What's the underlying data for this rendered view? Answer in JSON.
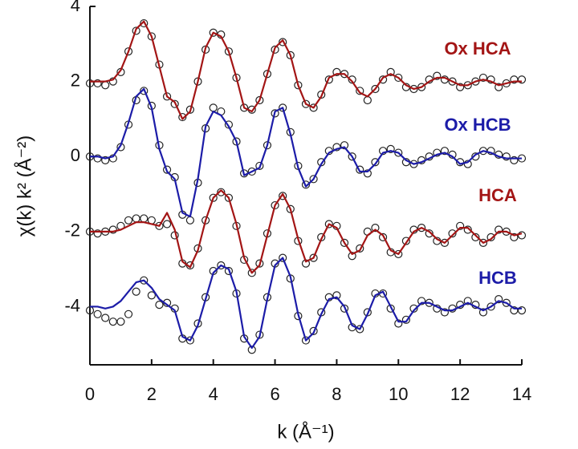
{
  "chart_data": {
    "type": "line",
    "x_label": "k (Å⁻¹)",
    "y_label": "χ(k) k² (Å⁻²)",
    "xlim": [
      0,
      14
    ],
    "ylim": [
      -5.55,
      4
    ],
    "xticks": [
      0,
      2,
      4,
      6,
      8,
      10,
      12,
      14
    ],
    "yticks": [
      4,
      2,
      0,
      -2,
      -4
    ],
    "x": [
      0,
      0.25,
      0.5,
      0.75,
      1,
      1.25,
      1.5,
      1.75,
      2,
      2.25,
      2.5,
      2.75,
      3,
      3.25,
      3.5,
      3.75,
      4,
      4.25,
      4.5,
      4.75,
      5,
      5.25,
      5.5,
      5.75,
      6,
      6.25,
      6.5,
      6.75,
      7,
      7.25,
      7.5,
      7.75,
      8,
      8.25,
      8.5,
      8.75,
      9,
      9.25,
      9.5,
      9.75,
      10,
      10.25,
      10.5,
      10.75,
      11,
      11.25,
      11.5,
      11.75,
      12,
      12.25,
      12.5,
      12.75,
      13,
      13.25,
      13.5,
      13.75,
      14
    ],
    "series": [
      {
        "name": "Ox HCA",
        "color": "#a31515",
        "values": [
          2.0,
          2.0,
          2.0,
          2.05,
          2.3,
          2.8,
          3.4,
          3.6,
          3.2,
          2.4,
          1.6,
          1.45,
          1.0,
          1.2,
          2.0,
          2.9,
          3.3,
          3.2,
          2.8,
          2.1,
          1.3,
          1.2,
          1.5,
          2.2,
          2.9,
          3.1,
          2.7,
          1.9,
          1.4,
          1.3,
          1.6,
          2.1,
          2.2,
          2.2,
          2.0,
          1.7,
          1.6,
          1.8,
          2.1,
          2.2,
          2.1,
          1.9,
          1.8,
          1.85,
          2.0,
          2.1,
          2.1,
          2.0,
          1.9,
          1.9,
          2.0,
          2.05,
          2.0,
          1.9,
          1.95,
          2.0,
          2.0
        ],
        "points": [
          1.95,
          1.95,
          1.9,
          2.0,
          2.25,
          2.8,
          3.35,
          3.55,
          3.2,
          2.45,
          1.6,
          1.4,
          1.05,
          1.25,
          2.0,
          2.85,
          3.3,
          3.25,
          2.8,
          2.1,
          1.3,
          1.25,
          1.5,
          2.2,
          2.85,
          3.05,
          2.7,
          1.9,
          1.4,
          1.3,
          1.65,
          2.05,
          2.25,
          2.2,
          2.05,
          1.75,
          1.5,
          1.8,
          2.05,
          2.25,
          2.1,
          1.85,
          1.8,
          1.85,
          2.05,
          2.15,
          2.05,
          2.0,
          1.85,
          1.9,
          2.0,
          2.1,
          2.05,
          1.85,
          1.95,
          2.05,
          2.05
        ]
      },
      {
        "name": "Ox HCB",
        "color": "#1c1ca8",
        "values": [
          0.0,
          0.0,
          -0.05,
          0.0,
          0.3,
          0.9,
          1.6,
          1.8,
          1.3,
          0.2,
          -0.4,
          -0.6,
          -1.5,
          -1.6,
          -0.6,
          0.8,
          1.2,
          1.1,
          0.8,
          0.4,
          -0.5,
          -0.4,
          -0.3,
          0.3,
          1.2,
          1.3,
          0.6,
          -0.3,
          -0.8,
          -0.6,
          -0.2,
          0.1,
          0.2,
          0.25,
          0.0,
          -0.4,
          -0.4,
          -0.2,
          0.1,
          0.15,
          0.1,
          -0.1,
          -0.2,
          -0.15,
          -0.05,
          0.05,
          0.1,
          0.0,
          -0.2,
          -0.15,
          0.05,
          0.15,
          0.1,
          0.0,
          -0.05,
          -0.05,
          -0.05
        ],
        "points": [
          0.0,
          -0.05,
          -0.1,
          -0.05,
          0.25,
          0.85,
          1.5,
          1.75,
          1.35,
          0.3,
          -0.35,
          -0.55,
          -1.55,
          -1.7,
          -0.7,
          0.75,
          1.3,
          1.2,
          0.85,
          0.4,
          -0.45,
          -0.4,
          -0.25,
          0.3,
          1.15,
          1.3,
          0.65,
          -0.25,
          -0.75,
          -0.6,
          -0.15,
          0.15,
          0.25,
          0.3,
          0.0,
          -0.35,
          -0.45,
          -0.15,
          0.15,
          0.2,
          0.1,
          -0.15,
          -0.2,
          -0.1,
          0.0,
          0.1,
          0.15,
          0.05,
          -0.15,
          -0.2,
          0.0,
          0.15,
          0.15,
          0.05,
          0.0,
          -0.1,
          -0.05
        ]
      },
      {
        "name": "HCA",
        "color": "#a31515",
        "values": [
          -2.0,
          -2.0,
          -2.0,
          -2.0,
          -1.95,
          -1.85,
          -1.75,
          -1.75,
          -1.8,
          -1.85,
          -1.5,
          -1.95,
          -2.8,
          -2.95,
          -2.5,
          -1.7,
          -1.1,
          -0.9,
          -1.1,
          -1.8,
          -2.7,
          -3.1,
          -2.9,
          -2.1,
          -1.3,
          -1.0,
          -1.4,
          -2.2,
          -2.8,
          -2.7,
          -2.2,
          -1.8,
          -1.9,
          -2.3,
          -2.6,
          -2.5,
          -2.1,
          -1.95,
          -2.1,
          -2.5,
          -2.6,
          -2.3,
          -2.0,
          -1.9,
          -2.0,
          -2.2,
          -2.3,
          -2.1,
          -1.9,
          -1.9,
          -2.1,
          -2.3,
          -2.2,
          -2.0,
          -2.0,
          -2.1,
          -2.05
        ],
        "points": [
          -2.0,
          -2.05,
          -2.0,
          -1.95,
          -1.85,
          -1.7,
          -1.65,
          -1.65,
          -1.7,
          -1.85,
          -1.8,
          -2.1,
          -2.85,
          -2.9,
          -2.45,
          -1.7,
          -1.1,
          -0.95,
          -1.1,
          -1.85,
          -2.75,
          -3.1,
          -2.85,
          -2.05,
          -1.3,
          -1.05,
          -1.4,
          -2.25,
          -2.85,
          -2.7,
          -2.15,
          -1.8,
          -1.85,
          -2.3,
          -2.65,
          -2.45,
          -2.0,
          -1.9,
          -2.15,
          -2.55,
          -2.6,
          -2.25,
          -1.95,
          -1.9,
          -2.05,
          -2.25,
          -2.3,
          -2.05,
          -1.85,
          -1.95,
          -2.15,
          -2.3,
          -2.15,
          -1.95,
          -2.0,
          -2.15,
          -2.1
        ]
      },
      {
        "name": "HCB",
        "color": "#1c1ca8",
        "values": [
          -4.0,
          -4.0,
          -4.05,
          -4.0,
          -3.85,
          -3.6,
          -3.35,
          -3.3,
          -3.5,
          -3.8,
          -3.95,
          -4.1,
          -4.8,
          -4.9,
          -4.5,
          -3.8,
          -3.1,
          -2.9,
          -3.0,
          -3.6,
          -4.8,
          -5.1,
          -4.8,
          -3.8,
          -2.9,
          -2.7,
          -3.2,
          -4.2,
          -4.9,
          -4.7,
          -4.2,
          -3.8,
          -3.75,
          -4.0,
          -4.5,
          -4.6,
          -4.2,
          -3.7,
          -3.6,
          -4.0,
          -4.4,
          -4.4,
          -4.1,
          -3.9,
          -3.9,
          -4.0,
          -4.1,
          -4.1,
          -4.0,
          -3.9,
          -4.0,
          -4.1,
          -4.0,
          -3.85,
          -3.9,
          -4.05,
          -4.05
        ],
        "points": [
          -4.1,
          -4.2,
          -4.3,
          -4.4,
          -4.4,
          -4.2,
          -3.6,
          -3.3,
          -3.7,
          -3.95,
          -3.9,
          -4.05,
          -4.85,
          -4.9,
          -4.45,
          -3.75,
          -3.05,
          -2.9,
          -3.05,
          -3.65,
          -4.85,
          -5.15,
          -4.75,
          -3.75,
          -2.85,
          -2.7,
          -3.25,
          -4.25,
          -4.9,
          -4.65,
          -4.15,
          -3.75,
          -3.7,
          -4.05,
          -4.55,
          -4.6,
          -4.15,
          -3.65,
          -3.65,
          -4.05,
          -4.45,
          -4.35,
          -4.05,
          -3.85,
          -3.9,
          -4.05,
          -4.15,
          -4.05,
          -3.95,
          -3.85,
          -3.95,
          -4.15,
          -4.0,
          -3.8,
          -3.9,
          -4.1,
          -4.1
        ]
      }
    ]
  }
}
